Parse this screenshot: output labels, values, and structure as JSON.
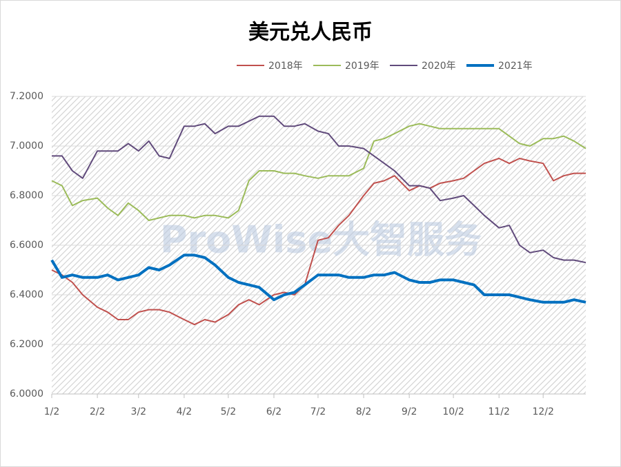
{
  "chart_data": {
    "type": "line",
    "title": "美元兑人民币",
    "watermark": "ProWise大智服务",
    "x": [
      "1/2",
      "1/9",
      "1/16",
      "1/23",
      "2/2",
      "2/9",
      "2/16",
      "2/23",
      "3/2",
      "3/9",
      "3/16",
      "3/23",
      "4/2",
      "4/9",
      "4/16",
      "4/23",
      "5/2",
      "5/9",
      "5/16",
      "5/23",
      "6/2",
      "6/9",
      "6/16",
      "6/23",
      "7/2",
      "7/9",
      "7/16",
      "7/23",
      "8/2",
      "8/9",
      "8/16",
      "8/23",
      "9/2",
      "9/9",
      "9/16",
      "9/23",
      "10/2",
      "10/9",
      "10/16",
      "10/23",
      "11/2",
      "11/9",
      "11/16",
      "11/23",
      "12/2",
      "12/9",
      "12/16",
      "12/23",
      "12/31"
    ],
    "xlim": [
      "1/2",
      "12/31"
    ],
    "xticks": [
      "1/2",
      "2/2",
      "3/2",
      "4/2",
      "5/2",
      "6/2",
      "7/2",
      "8/2",
      "9/2",
      "10/2",
      "11/2",
      "12/2"
    ],
    "ylim": [
      6.0,
      7.2
    ],
    "yticks": [
      {
        "value": 6.0,
        "label": "6.0000"
      },
      {
        "value": 6.2,
        "label": "6.2000"
      },
      {
        "value": 6.4,
        "label": "6.4000"
      },
      {
        "value": 6.6,
        "label": "6.6000"
      },
      {
        "value": 6.8,
        "label": "6.8000"
      },
      {
        "value": 7.0,
        "label": "7.0000"
      },
      {
        "value": 7.2,
        "label": "7.2000"
      }
    ],
    "grid": true,
    "series": [
      {
        "name": "2018年",
        "color": "#c0504d",
        "values": [
          6.5,
          6.48,
          6.45,
          6.4,
          6.35,
          6.33,
          6.3,
          6.3,
          6.33,
          6.34,
          6.34,
          6.33,
          6.3,
          6.28,
          6.3,
          6.29,
          6.32,
          6.36,
          6.38,
          6.36,
          6.4,
          6.41,
          6.4,
          6.44,
          6.62,
          6.63,
          6.68,
          6.72,
          6.8,
          6.85,
          6.86,
          6.88,
          6.82,
          6.84,
          6.83,
          6.85,
          6.86,
          6.87,
          6.9,
          6.93,
          6.95,
          6.93,
          6.95,
          6.94,
          6.93,
          6.86,
          6.88,
          6.89,
          6.89
        ]
      },
      {
        "name": "2019年",
        "color": "#9bbb59",
        "values": [
          6.86,
          6.84,
          6.76,
          6.78,
          6.79,
          6.75,
          6.72,
          6.77,
          6.74,
          6.7,
          6.71,
          6.72,
          6.72,
          6.71,
          6.72,
          6.72,
          6.71,
          6.74,
          6.86,
          6.9,
          6.9,
          6.89,
          6.89,
          6.88,
          6.87,
          6.88,
          6.88,
          6.88,
          6.91,
          7.02,
          7.03,
          7.05,
          7.08,
          7.09,
          7.08,
          7.07,
          7.07,
          7.07,
          7.07,
          7.07,
          7.07,
          7.04,
          7.01,
          7.0,
          7.03,
          7.03,
          7.04,
          7.02,
          6.99
        ]
      },
      {
        "name": "2020年",
        "color": "#604a7b",
        "values": [
          6.96,
          6.96,
          6.9,
          6.87,
          6.98,
          6.98,
          6.98,
          7.01,
          6.98,
          7.02,
          6.96,
          6.95,
          7.08,
          7.08,
          7.09,
          7.05,
          7.08,
          7.08,
          7.1,
          7.12,
          7.12,
          7.08,
          7.08,
          7.09,
          7.06,
          7.05,
          7.0,
          7.0,
          6.99,
          6.96,
          6.93,
          6.9,
          6.84,
          6.84,
          6.83,
          6.78,
          6.79,
          6.8,
          6.76,
          6.72,
          6.67,
          6.68,
          6.6,
          6.57,
          6.58,
          6.55,
          6.54,
          6.54,
          6.53
        ]
      },
      {
        "name": "2021年",
        "color": "#0070c0",
        "values": [
          6.54,
          6.47,
          6.48,
          6.47,
          6.47,
          6.48,
          6.46,
          6.47,
          6.48,
          6.51,
          6.5,
          6.52,
          6.56,
          6.56,
          6.55,
          6.52,
          6.47,
          6.45,
          6.44,
          6.43,
          6.38,
          6.4,
          6.41,
          6.44,
          6.48,
          6.48,
          6.48,
          6.47,
          6.47,
          6.48,
          6.48,
          6.49,
          6.46,
          6.45,
          6.45,
          6.46,
          6.46,
          6.45,
          6.44,
          6.4,
          6.4,
          6.4,
          6.39,
          6.38,
          6.37,
          6.37,
          6.37,
          6.38,
          6.37
        ]
      }
    ]
  }
}
